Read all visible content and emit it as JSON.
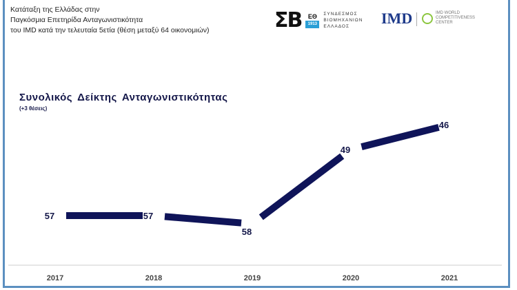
{
  "header": {
    "lines": [
      "Κατάταξη της Ελλάδας στην",
      "Παγκόσμια Επετηρίδα Ανταγωνιστικότητα",
      "του IMD κατά την τελευταία 5ετία (θέση μεταξύ 64 οικονομιών)"
    ]
  },
  "logos": {
    "sbe_mark": "ΣΒ",
    "sbe_box_top": "ΕΘ",
    "sbe_box_bottom": "1913",
    "sbe_text": [
      "ΣΥΝΔΕΣΜΟΣ",
      "ΒΙΟΜΗΧΑΝΙΩΝ",
      "ΕΛΛΑΔΟΣ"
    ],
    "imd": "IMD",
    "wcc_text": [
      "IMD WORLD",
      "COMPETITIVENESS",
      "CENTER"
    ]
  },
  "colors": {
    "line": "#0f1459",
    "frame": "#5b8fc0",
    "label": "#15184a"
  },
  "chart_data": {
    "type": "line",
    "title": "Συνολικός Δείκτης Ανταγωνιστικότητας",
    "subtitle": "(+3 θέσεις)",
    "categories": [
      "2017",
      "2018",
      "2019",
      "2020",
      "2021"
    ],
    "values": [
      57,
      57,
      58,
      49,
      46
    ],
    "labels": [
      "57",
      "57",
      "58",
      "49",
      "46"
    ],
    "ylabel": "",
    "xlabel": "",
    "y_inverted": true,
    "grid": false
  }
}
